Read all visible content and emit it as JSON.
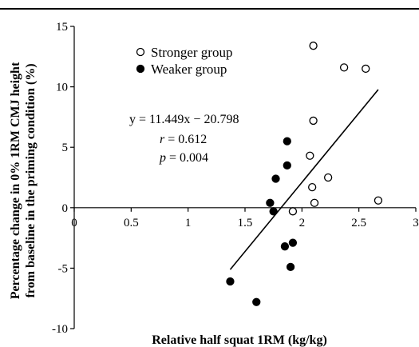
{
  "chart_data": {
    "type": "scatter",
    "xlabel": "Relative half squat 1RM (kg/kg)",
    "ylabel_lines": [
      "Percentage change in 0% 1RM CMJ height",
      "from baseline in the priming condition (%)"
    ],
    "xlim": [
      0,
      3
    ],
    "ylim": [
      -10,
      15
    ],
    "x_ticks": [
      "0",
      "0.5",
      "1",
      "1.5",
      "2",
      "2.5",
      "3"
    ],
    "y_ticks": [
      "-10",
      "-5",
      "0",
      "5",
      "10",
      "15"
    ],
    "x_tick_values": [
      0,
      0.5,
      1,
      1.5,
      2,
      2.5,
      3
    ],
    "y_tick_values": [
      -10,
      -5,
      0,
      5,
      10,
      15
    ],
    "legend": {
      "placement": "top-left"
    },
    "series": [
      {
        "name": "Stronger group",
        "marker": "open-circle",
        "points": [
          [
            2.1,
            13.4
          ],
          [
            2.37,
            11.6
          ],
          [
            2.56,
            11.5
          ],
          [
            2.1,
            7.2
          ],
          [
            2.07,
            4.3
          ],
          [
            2.23,
            2.5
          ],
          [
            2.09,
            1.7
          ],
          [
            2.11,
            0.4
          ],
          [
            1.92,
            -0.3
          ],
          [
            2.67,
            0.6
          ]
        ]
      },
      {
        "name": "Weaker group",
        "marker": "filled-circle",
        "points": [
          [
            1.87,
            5.5
          ],
          [
            1.87,
            3.5
          ],
          [
            1.77,
            2.4
          ],
          [
            1.72,
            0.4
          ],
          [
            1.75,
            -0.3
          ],
          [
            1.92,
            -2.9
          ],
          [
            1.85,
            -3.2
          ],
          [
            1.9,
            -4.9
          ],
          [
            1.37,
            -6.1
          ],
          [
            1.6,
            -7.8
          ]
        ]
      }
    ],
    "trendline": {
      "slope": 11.449,
      "intercept": -20.798,
      "x_range": [
        1.37,
        2.67
      ]
    },
    "annotations": {
      "equation": "y = 11.449x − 20.798",
      "r_label": "r",
      "r_value": " = 0.612",
      "p_label": "p",
      "p_value": " = 0.004"
    }
  }
}
